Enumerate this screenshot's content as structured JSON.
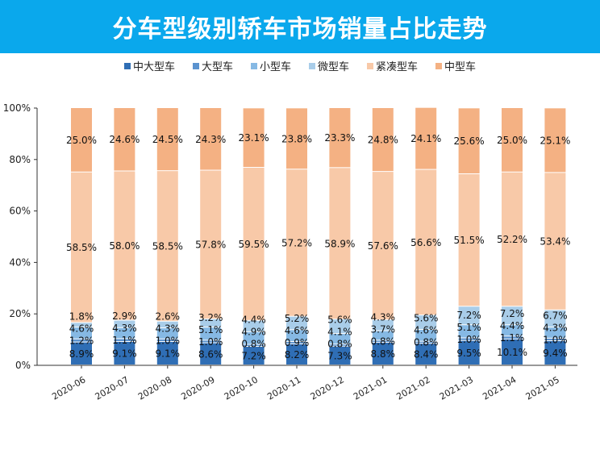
{
  "chart_data": {
    "type": "bar",
    "stacked": true,
    "title": "分车型级别轿车市场销量占比走势",
    "xlabel": "",
    "ylabel": "",
    "ylim": [
      0,
      100
    ],
    "yticks": [
      "0%",
      "20%",
      "40%",
      "60%",
      "80%",
      "100%"
    ],
    "grid": false,
    "legend_position": "top",
    "categories": [
      "2020-06",
      "2020-07",
      "2020-08",
      "2020-09",
      "2020-10",
      "2020-11",
      "2020-12",
      "2021-01",
      "2021-02",
      "2021-03",
      "2021-04",
      "2021-05"
    ],
    "series": [
      {
        "name": "中大型车",
        "color": "#2f6eb5",
        "values": [
          8.9,
          9.1,
          9.1,
          8.6,
          7.2,
          8.2,
          7.3,
          8.8,
          8.4,
          9.5,
          10.1,
          9.4
        ]
      },
      {
        "name": "大型车",
        "color": "#5b93cf",
        "values": [
          1.2,
          1.1,
          1.0,
          1.0,
          0.8,
          0.9,
          0.8,
          0.8,
          0.8,
          1.0,
          1.1,
          1.0
        ]
      },
      {
        "name": "小型车",
        "color": "#86b9e4",
        "values": [
          4.6,
          4.3,
          4.3,
          5.1,
          4.9,
          4.6,
          4.1,
          3.7,
          4.6,
          5.1,
          4.4,
          4.3
        ]
      },
      {
        "name": "微型车",
        "color": "#a9cde9",
        "values": [
          1.8,
          2.9,
          2.6,
          3.2,
          4.4,
          5.2,
          5.6,
          4.3,
          5.6,
          7.2,
          7.2,
          6.7
        ]
      },
      {
        "name": "紧凑型车",
        "color": "#f8c9a8",
        "values": [
          58.5,
          58.0,
          58.5,
          57.8,
          59.5,
          57.2,
          58.9,
          57.6,
          56.6,
          51.5,
          52.2,
          53.4
        ]
      },
      {
        "name": "中型车",
        "color": "#f4b183",
        "values": [
          25.0,
          24.6,
          24.5,
          24.3,
          23.1,
          23.8,
          23.3,
          24.8,
          24.1,
          25.6,
          25.0,
          25.1
        ]
      }
    ]
  }
}
